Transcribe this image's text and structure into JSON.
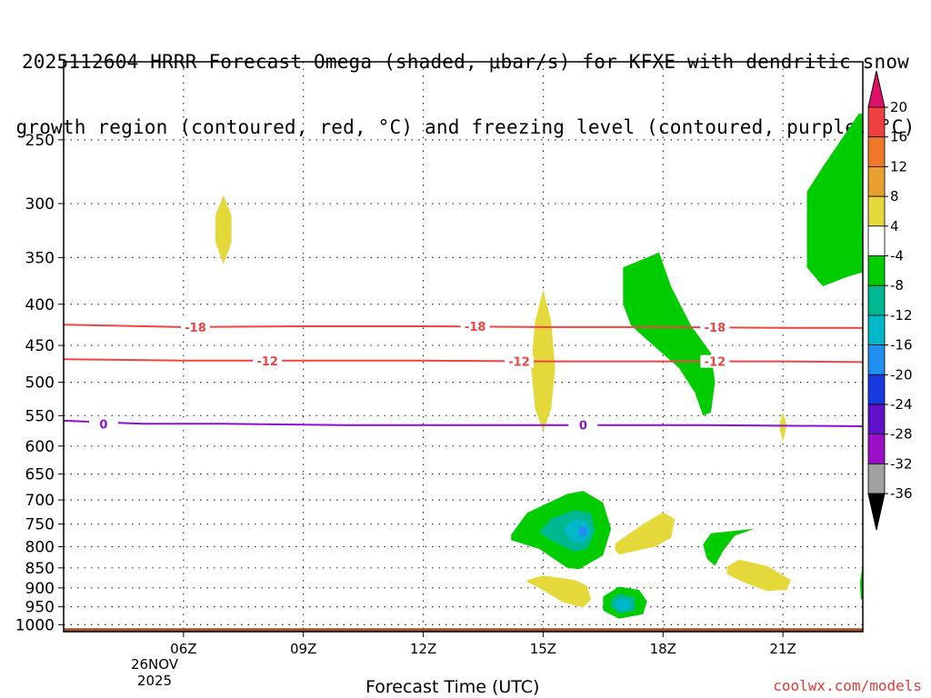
{
  "title": {
    "line1": "2025112604 HRRR Forecast Omega (shaded, μbar/s) for KFXE with dendritic snow",
    "line2": "growth region (contoured, red, °C) and freezing level (contoured, purple, °C)"
  },
  "xlabel": "Forecast Time (UTC)",
  "date_label": {
    "day": "26NOV",
    "year": "2025"
  },
  "credit": "coolwx.com/models",
  "chart_data": {
    "type": "contour",
    "x_unit": "hour UTC",
    "xlim": [
      3,
      23
    ],
    "x_ticks": [
      {
        "hour": 6,
        "label": "06Z"
      },
      {
        "hour": 9,
        "label": "09Z"
      },
      {
        "hour": 12,
        "label": "12Z"
      },
      {
        "hour": 15,
        "label": "15Z"
      },
      {
        "hour": 18,
        "label": "18Z"
      },
      {
        "hour": 21,
        "label": "21Z"
      }
    ],
    "y_unit": "hPa",
    "ylim": [
      1020,
      200
    ],
    "y_ticks": [
      250,
      300,
      350,
      400,
      450,
      500,
      550,
      600,
      650,
      700,
      750,
      800,
      850,
      900,
      950,
      1000
    ],
    "grid": true,
    "colorbar": {
      "labels": [
        "20",
        "16",
        "12",
        "8",
        "4",
        "-4",
        "-8",
        "-12",
        "-16",
        "-20",
        "-24",
        "-28",
        "-32",
        "-36"
      ],
      "colors": [
        "#ff2b6f",
        "#ee4040",
        "#f07828",
        "#e8a030",
        "#e5d83a",
        "#ffffff",
        "#00cc00",
        "#00b890",
        "#00b8c8",
        "#2090f0",
        "#1838e0",
        "#6010c8",
        "#9a10c8",
        "#a0a0a0",
        "#000000"
      ],
      "top_arrow": "#e0106a",
      "bottom_arrow": "#000000"
    },
    "contour_lines": [
      {
        "name": "-18",
        "color": "#ee4444",
        "points": [
          [
            3,
            424
          ],
          [
            6,
            427
          ],
          [
            9,
            426
          ],
          [
            12,
            426
          ],
          [
            15,
            427
          ],
          [
            18,
            427
          ],
          [
            21,
            428
          ],
          [
            23,
            428
          ]
        ],
        "labels": [
          [
            6.3,
            427
          ],
          [
            13.3,
            426
          ],
          [
            19.3,
            427
          ]
        ]
      },
      {
        "name": "-12",
        "color": "#ee4444",
        "points": [
          [
            3,
            468
          ],
          [
            6,
            470
          ],
          [
            9,
            470
          ],
          [
            12,
            470
          ],
          [
            15,
            471
          ],
          [
            18,
            471
          ],
          [
            21,
            471
          ],
          [
            23,
            472
          ]
        ],
        "labels": [
          [
            8.1,
            470
          ],
          [
            14.4,
            471
          ],
          [
            19.3,
            471
          ]
        ]
      },
      {
        "name": "0",
        "color": "#8b10d0",
        "points": [
          [
            3,
            558
          ],
          [
            5,
            563
          ],
          [
            7,
            563
          ],
          [
            10,
            565
          ],
          [
            13,
            565
          ],
          [
            16,
            565
          ],
          [
            19,
            565
          ],
          [
            23,
            567
          ]
        ],
        "labels": [
          [
            4.0,
            563
          ],
          [
            16.0,
            565
          ]
        ]
      }
    ],
    "omega_regions": [
      {
        "value": 4,
        "color": "#e5d83a",
        "points": [
          [
            7,
            293
          ],
          [
            7.2,
            310
          ],
          [
            7.2,
            335
          ],
          [
            7.0,
            357
          ],
          [
            6.8,
            335
          ],
          [
            6.8,
            310
          ]
        ]
      },
      {
        "value": 4,
        "color": "#e5d83a",
        "points": [
          [
            15,
            384
          ],
          [
            15.2,
            420
          ],
          [
            15.3,
            480
          ],
          [
            15.2,
            540
          ],
          [
            15,
            575
          ],
          [
            14.8,
            540
          ],
          [
            14.7,
            480
          ],
          [
            14.8,
            420
          ]
        ]
      },
      {
        "value": 4,
        "color": "#e5d83a",
        "points": [
          [
            21,
            545
          ],
          [
            21.1,
            565
          ],
          [
            21,
            593
          ],
          [
            20.9,
            565
          ]
        ]
      },
      {
        "value": 4,
        "color": "#e5d83a",
        "points": [
          [
            16.8,
            793
          ],
          [
            17.5,
            750
          ],
          [
            18.0,
            725
          ],
          [
            18.3,
            740
          ],
          [
            18.2,
            780
          ],
          [
            17.8,
            800
          ],
          [
            16.9,
            818
          ],
          [
            16.8,
            808
          ]
        ]
      },
      {
        "value": 4,
        "color": "#e5d83a",
        "points": [
          [
            14.6,
            880
          ],
          [
            15.0,
            869
          ],
          [
            15.8,
            880
          ],
          [
            16.1,
            895
          ],
          [
            16.2,
            930
          ],
          [
            16.0,
            952
          ],
          [
            15.5,
            938
          ],
          [
            14.9,
            900
          ],
          [
            14.6,
            885
          ]
        ]
      },
      {
        "value": 4,
        "color": "#e5d83a",
        "points": [
          [
            19.6,
            847
          ],
          [
            19.9,
            830
          ],
          [
            20.6,
            845
          ],
          [
            21.2,
            880
          ],
          [
            21.1,
            905
          ],
          [
            20.6,
            908
          ],
          [
            20.0,
            885
          ],
          [
            19.6,
            865
          ]
        ]
      },
      {
        "value": -4,
        "color": "#00cc00",
        "points": [
          [
            22.9,
            232
          ],
          [
            23,
            232
          ],
          [
            23,
            365
          ],
          [
            22.6,
            370
          ],
          [
            22.0,
            380
          ],
          [
            21.6,
            360
          ],
          [
            21.6,
            290
          ],
          [
            22.0,
            270
          ]
        ]
      },
      {
        "value": -4,
        "color": "#00cc00",
        "points": [
          [
            17,
            360
          ],
          [
            17.6,
            350
          ],
          [
            17.9,
            345
          ],
          [
            18.2,
            380
          ],
          [
            18.7,
            425
          ],
          [
            19.2,
            460
          ],
          [
            19.3,
            500
          ],
          [
            19.2,
            545
          ],
          [
            19.0,
            550
          ],
          [
            18.8,
            515
          ],
          [
            18.4,
            480
          ],
          [
            17.8,
            452
          ],
          [
            17.2,
            425
          ],
          [
            17.0,
            400
          ]
        ]
      },
      {
        "value": -4,
        "color": "#00cc00",
        "points": [
          [
            14.2,
            773
          ],
          [
            14.6,
            726
          ],
          [
            15.6,
            688
          ],
          [
            16.0,
            682
          ],
          [
            16.5,
            705
          ],
          [
            16.7,
            760
          ],
          [
            16.5,
            820
          ],
          [
            15.9,
            853
          ],
          [
            15.6,
            850
          ],
          [
            14.9,
            805
          ],
          [
            14.2,
            785
          ]
        ]
      },
      {
        "value": -8,
        "color": "#00b890",
        "points": [
          [
            14.9,
            768
          ],
          [
            15.2,
            738
          ],
          [
            15.8,
            720
          ],
          [
            16.2,
            727
          ],
          [
            16.3,
            765
          ],
          [
            16.1,
            805
          ],
          [
            15.8,
            812
          ],
          [
            15.3,
            790
          ]
        ]
      },
      {
        "value": -12,
        "color": "#00b8c8",
        "points": [
          [
            15.5,
            760
          ],
          [
            15.8,
            738
          ],
          [
            16.1,
            744
          ],
          [
            16.2,
            770
          ],
          [
            16.0,
            792
          ],
          [
            15.7,
            788
          ]
        ]
      },
      {
        "value": -16,
        "color": "#2090f0",
        "points": [
          [
            15.9,
            753
          ],
          [
            16.1,
            757
          ],
          [
            16.1,
            777
          ],
          [
            15.9,
            777
          ]
        ]
      },
      {
        "value": -4,
        "color": "#00cc00",
        "points": [
          [
            16.5,
            923
          ],
          [
            16.9,
            897
          ],
          [
            17.4,
            905
          ],
          [
            17.6,
            935
          ],
          [
            17.5,
            970
          ],
          [
            16.9,
            983
          ],
          [
            16.5,
            960
          ]
        ]
      },
      {
        "value": -8,
        "color": "#00b890",
        "points": [
          [
            16.7,
            930
          ],
          [
            16.9,
            915
          ],
          [
            17.3,
            925
          ],
          [
            17.3,
            960
          ],
          [
            16.9,
            968
          ],
          [
            16.7,
            950
          ]
        ]
      },
      {
        "value": -12,
        "color": "#00b8c8",
        "points": [
          [
            16.8,
            937
          ],
          [
            17.0,
            926
          ],
          [
            17.2,
            937
          ],
          [
            17.2,
            958
          ],
          [
            17.0,
            962
          ],
          [
            16.8,
            952
          ]
        ]
      },
      {
        "value": -4,
        "color": "#00cc00",
        "points": [
          [
            19.2,
            770
          ],
          [
            20.3,
            760
          ],
          [
            19.8,
            775
          ],
          [
            19.5,
            810
          ],
          [
            19.3,
            845
          ],
          [
            19.1,
            828
          ],
          [
            19.0,
            795
          ]
        ]
      },
      {
        "value": -4,
        "color": "#00cc00",
        "points": [
          [
            23,
            840
          ],
          [
            23,
            930
          ],
          [
            22.95,
            930
          ],
          [
            22.93,
            885
          ]
        ]
      }
    ],
    "terrain": {
      "color": "#a0522d",
      "top_hpa": 1010,
      "bottom_hpa": 1020
    }
  }
}
